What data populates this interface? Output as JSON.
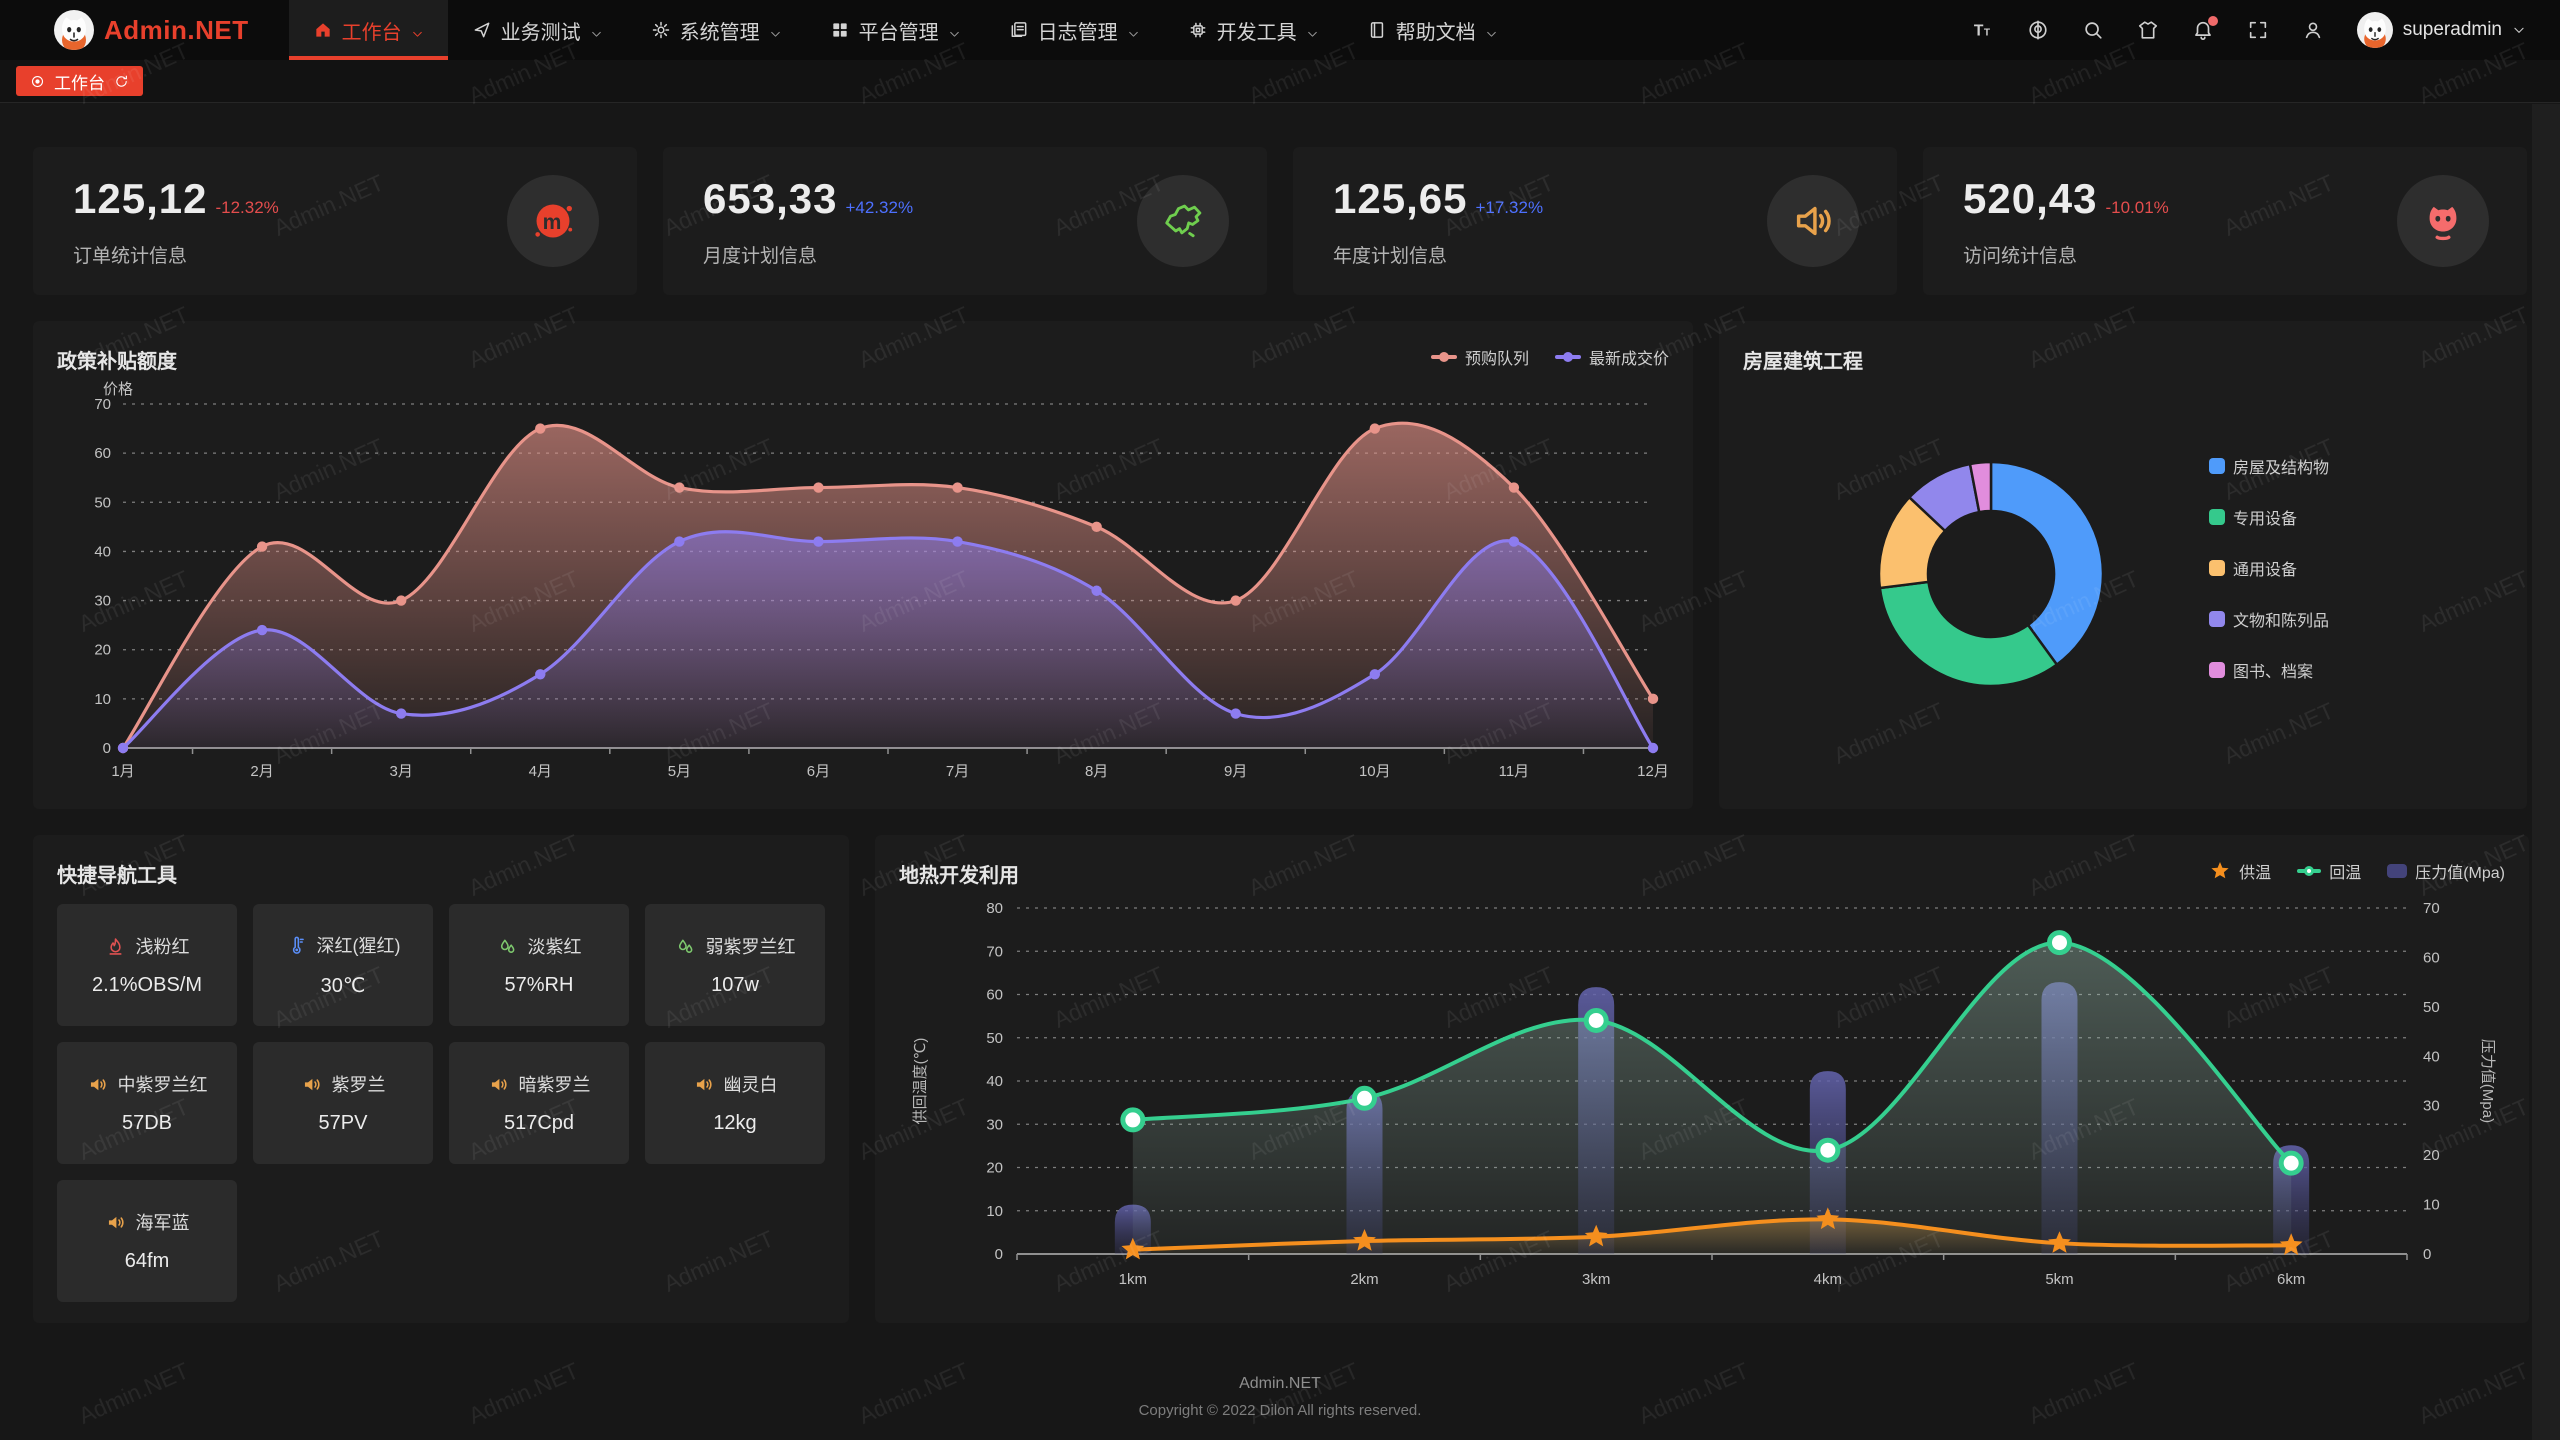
{
  "brand": {
    "title": "Admin.NET",
    "accent_color": "#e8402c"
  },
  "nav": {
    "items": [
      {
        "icon": "home-icon",
        "label": "工作台",
        "active": true
      },
      {
        "icon": "send-icon",
        "label": "业务测试",
        "active": false
      },
      {
        "icon": "gear-icon",
        "label": "系统管理",
        "active": false
      },
      {
        "icon": "grid-icon",
        "label": "平台管理",
        "active": false
      },
      {
        "icon": "log-icon",
        "label": "日志管理",
        "active": false
      },
      {
        "icon": "chip-icon",
        "label": "开发工具",
        "active": false
      },
      {
        "icon": "book-icon",
        "label": "帮助文档",
        "active": false
      }
    ],
    "toolbar_icons": [
      "fontsize-icon",
      "language-icon",
      "search-icon",
      "theme-icon",
      "notification-icon",
      "fullscreen-icon",
      "profile-icon"
    ],
    "notification_has_badge": true,
    "username": "superadmin"
  },
  "tabbar": {
    "active_tab": "工作台"
  },
  "stats": [
    {
      "value": "125,12",
      "delta": "-12.32%",
      "delta_color": "#e34d4d",
      "label": "订单统计信息",
      "icon": "meetup-icon",
      "icon_color": "#e8402c"
    },
    {
      "value": "653,33",
      "delta": "+42.32%",
      "delta_color": "#4d70ff",
      "label": "月度计划信息",
      "icon": "china-map-icon",
      "icon_color": "#6fce4e"
    },
    {
      "value": "125,65",
      "delta": "+17.32%",
      "delta_color": "#4d70ff",
      "label": "年度计划信息",
      "icon": "voice-icon",
      "icon_color": "#e8a24b"
    },
    {
      "value": "520,43",
      "delta": "-10.01%",
      "delta_color": "#e34d4d",
      "label": "访问统计信息",
      "icon": "cat-icon",
      "icon_color": "#f56c6c"
    }
  ],
  "tools": {
    "title": "快捷导航工具",
    "items": [
      {
        "icon": "flame-icon",
        "icon_color": "#e05252",
        "name": "浅粉红",
        "value": "2.1%OBS/M"
      },
      {
        "icon": "thermometer-icon",
        "icon_color": "#5b8ff9",
        "name": "深红(猩红)",
        "value": "30℃"
      },
      {
        "icon": "humidity-icon",
        "icon_color": "#7ec96e",
        "name": "淡紫红",
        "value": "57%RH"
      },
      {
        "icon": "humidity-icon",
        "icon_color": "#7ec96e",
        "name": "弱紫罗兰红",
        "value": "107w"
      },
      {
        "icon": "speaker-icon",
        "icon_color": "#e8a24b",
        "name": "中紫罗兰红",
        "value": "57DB"
      },
      {
        "icon": "speaker-icon",
        "icon_color": "#e8a24b",
        "name": "紫罗兰",
        "value": "57PV"
      },
      {
        "icon": "speaker-icon",
        "icon_color": "#e8a24b",
        "name": "暗紫罗兰",
        "value": "517Cpd"
      },
      {
        "icon": "speaker-icon",
        "icon_color": "#e8a24b",
        "name": "幽灵白",
        "value": "12kg"
      },
      {
        "icon": "speaker-icon",
        "icon_color": "#e8a24b",
        "name": "海军蓝",
        "value": "64fm"
      }
    ]
  },
  "chart_data": [
    {
      "id": "subsidy",
      "type": "line",
      "title": "政策补贴额度",
      "ylabel": "价格",
      "ylim": [
        0,
        70
      ],
      "grid": "dashed",
      "legend_position": "top-right",
      "categories": [
        "1月",
        "2月",
        "3月",
        "4月",
        "5月",
        "6月",
        "7月",
        "8月",
        "9月",
        "10月",
        "11月",
        "12月"
      ],
      "series": [
        {
          "name": "预购队列",
          "color": "#e8948a",
          "values": [
            0,
            41,
            30,
            65,
            53,
            53,
            53,
            45,
            30,
            65,
            53,
            10
          ]
        },
        {
          "name": "最新成交价",
          "color": "#8d7cf0",
          "values": [
            0,
            24,
            7,
            15,
            42,
            42,
            42,
            32,
            7,
            15,
            42,
            0
          ]
        }
      ]
    },
    {
      "id": "building",
      "type": "pie",
      "title": "房屋建筑工程",
      "labels": [
        "房屋及结构物",
        "专用设备",
        "通用设备",
        "文物和陈列品",
        "图书、档案"
      ],
      "values": [
        40,
        33,
        14,
        10,
        3
      ],
      "colors": [
        "#4f9bfa",
        "#35c98c",
        "#fbc06e",
        "#9187ec",
        "#e18ddd"
      ],
      "legend_position": "right"
    },
    {
      "id": "geothermal",
      "type": "line+bar",
      "title": "地热开发利用",
      "categories": [
        "1km",
        "2km",
        "3km",
        "4km",
        "5km",
        "6km"
      ],
      "ylabel_left": "供回温度(℃)",
      "ylim_left": [
        0,
        80
      ],
      "ylabel_right": "压力值(Mpa)",
      "ylim_right": [
        0,
        70
      ],
      "legend_position": "top-right",
      "series": [
        {
          "name": "供温",
          "type": "line",
          "marker": "star",
          "color": "#f58f1e",
          "axis": "left",
          "values": [
            1,
            3,
            4,
            8,
            2.5,
            2
          ]
        },
        {
          "name": "回温",
          "type": "line",
          "marker": "circle",
          "color": "#35cf8f",
          "axis": "left",
          "values": [
            31,
            36,
            54,
            24,
            72,
            21
          ]
        },
        {
          "name": "压力值(Mpa)",
          "type": "bar",
          "marker": "rect",
          "color": "#50508c",
          "axis": "right",
          "values": [
            10,
            33,
            54,
            37,
            55,
            22
          ]
        }
      ]
    }
  ],
  "footer": {
    "brand": "Admin.NET",
    "copyright": "Copyright © 2022 Dilon All rights reserved."
  },
  "watermark": {
    "text": "Admin.NET"
  }
}
